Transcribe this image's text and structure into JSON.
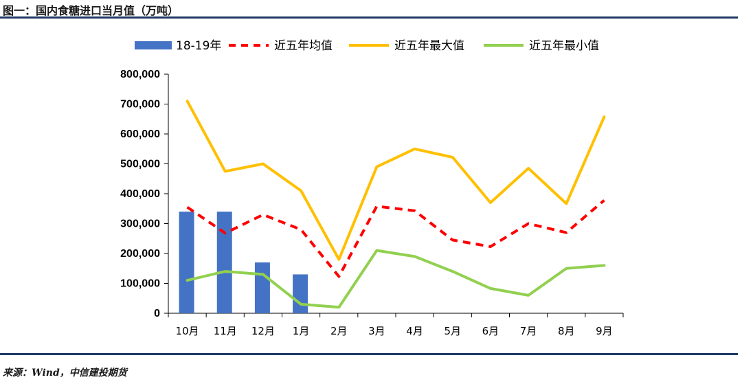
{
  "header": {
    "title": "图一：国内食糖进口当月值（万吨）"
  },
  "footer": {
    "source": "来源：Wind，中信建投期货"
  },
  "chart_data": {
    "type": "bar",
    "title": "国内食糖进口当月值（万吨）",
    "categories": [
      "10月",
      "11月",
      "12月",
      "1月",
      "2月",
      "3月",
      "4月",
      "5月",
      "6月",
      "7月",
      "8月",
      "9月"
    ],
    "ylim": [
      0,
      800000
    ],
    "yticks": [
      0,
      100000,
      200000,
      300000,
      400000,
      500000,
      600000,
      700000,
      800000
    ],
    "ytick_labels": [
      "0",
      "100,000",
      "200,000",
      "300,000",
      "400,000",
      "500,000",
      "600,000",
      "700,000",
      "800,000"
    ],
    "legend_position": "top",
    "series": [
      {
        "name": "18-19年",
        "kind": "bar",
        "color": "#4472c4",
        "values": [
          340000,
          340000,
          170000,
          130000,
          null,
          null,
          null,
          null,
          null,
          null,
          null,
          null
        ]
      },
      {
        "name": "近五年均值",
        "kind": "line",
        "style": "dashed",
        "color": "#ff0000",
        "values": [
          355000,
          268000,
          330000,
          280000,
          123000,
          358000,
          343000,
          245000,
          223000,
          300000,
          270000,
          378000
        ]
      },
      {
        "name": "近五年最大值",
        "kind": "line",
        "style": "solid",
        "color": "#ffc000",
        "values": [
          710000,
          475000,
          500000,
          410000,
          180000,
          490000,
          550000,
          522000,
          370000,
          485000,
          367000,
          657000
        ]
      },
      {
        "name": "近五年最小值",
        "kind": "line",
        "style": "solid",
        "color": "#92d050",
        "values": [
          110000,
          140000,
          130000,
          30000,
          20000,
          210000,
          190000,
          140000,
          83000,
          60000,
          150000,
          160000
        ]
      }
    ]
  }
}
